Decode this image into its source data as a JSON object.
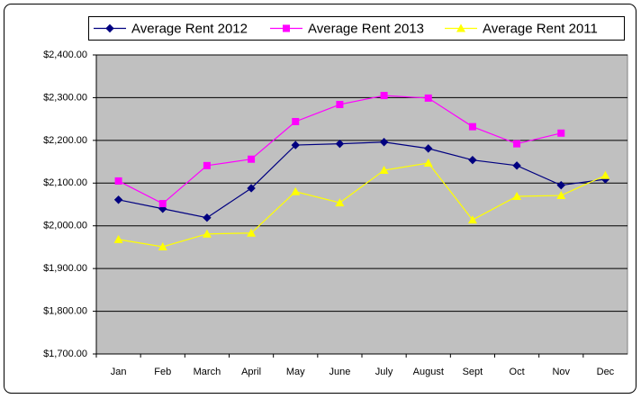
{
  "chart_data": {
    "type": "line",
    "categories": [
      "Jan",
      "Feb",
      "March",
      "April",
      "May",
      "June",
      "July",
      "August",
      "Sept",
      "Oct",
      "Nov",
      "Dec"
    ],
    "series": [
      {
        "name": "Average Rent 2012",
        "color": "#000080",
        "marker": "diamond",
        "values": [
          2061,
          2040,
          2019,
          2088,
          2189,
          2192,
          2196,
          2181,
          2154,
          2141,
          2095,
          2109
        ]
      },
      {
        "name": "Average Rent 2013",
        "color": "#ff00ff",
        "marker": "square",
        "values": [
          2105,
          2052,
          2141,
          2156,
          2244,
          2284,
          2305,
          2299,
          2232,
          2192,
          2217,
          null
        ]
      },
      {
        "name": "Average Rent 2011",
        "color": "#ffff00",
        "marker": "triangle",
        "values": [
          1968,
          1951,
          1981,
          1983,
          2080,
          2054,
          2130,
          2147,
          2014,
          2069,
          2071,
          2118
        ]
      }
    ],
    "ylim": [
      1700,
      2400
    ],
    "yticks": [
      {
        "value": 1700,
        "label": "$1,700.00"
      },
      {
        "value": 1800,
        "label": "$1,800.00"
      },
      {
        "value": 1900,
        "label": "$1,900.00"
      },
      {
        "value": 2000,
        "label": "$2,000.00"
      },
      {
        "value": 2100,
        "label": "$2,100.00"
      },
      {
        "value": 2200,
        "label": "$2,200.00"
      },
      {
        "value": 2300,
        "label": "$2,300.00"
      },
      {
        "value": 2400,
        "label": "$2,400.00"
      }
    ],
    "grid": true,
    "legend": "top",
    "plot_background": "#c0c0c0"
  }
}
